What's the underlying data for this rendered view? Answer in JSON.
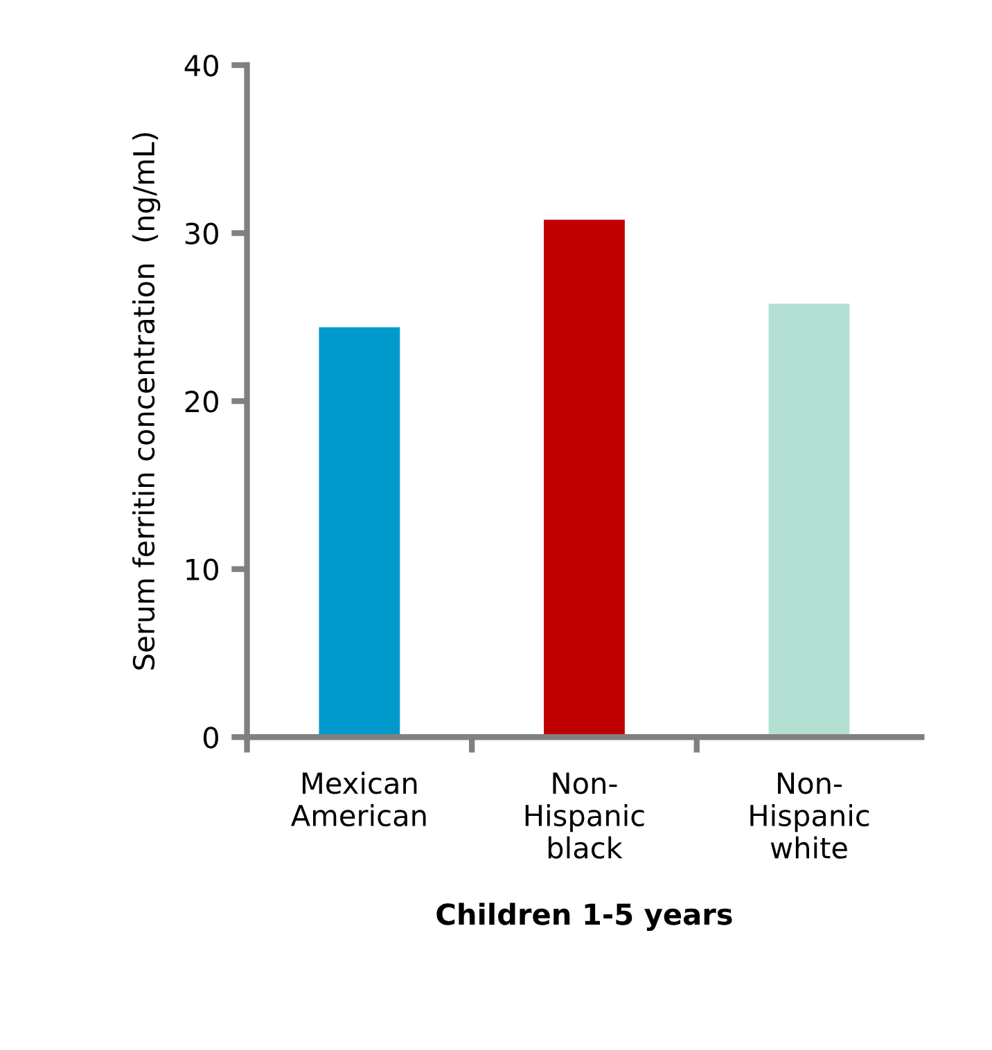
{
  "chart_data": {
    "type": "bar",
    "xlabel": "Children 1-5 years",
    "ylabel": "Serum ferritin concentration  (ng/mL)",
    "categories": [
      "Mexican\nAmerican",
      "Non-\nHispanic\nblack",
      "Non-\nHispanic\nwhite"
    ],
    "values": [
      24.4,
      30.8,
      25.8
    ],
    "colors": [
      "#0099cc",
      "#c00000",
      "#b3e0d3"
    ],
    "ylim": [
      0,
      40
    ],
    "yticks": [
      0,
      10,
      20,
      30,
      40
    ],
    "grid": false,
    "legend": false
  }
}
